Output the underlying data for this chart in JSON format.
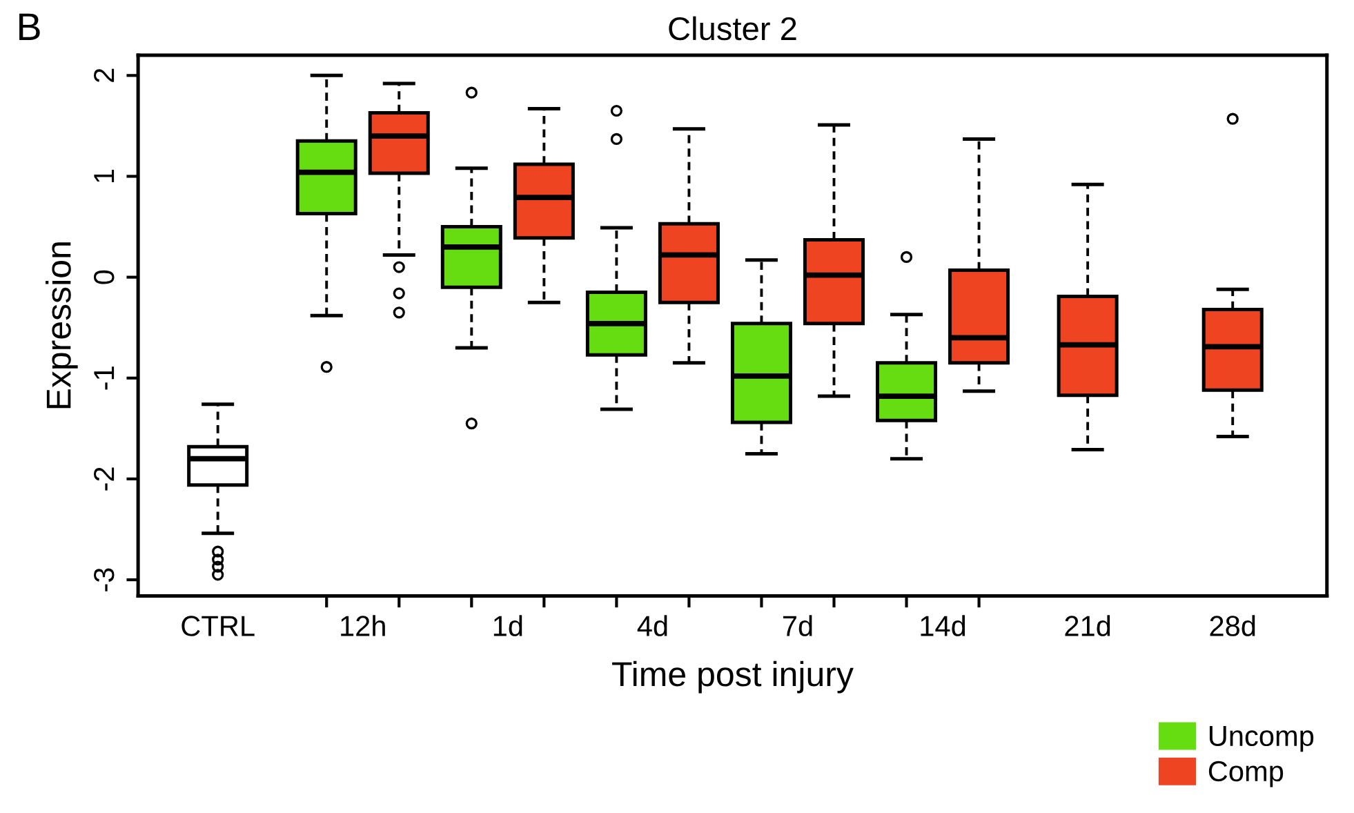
{
  "chart_data": {
    "type": "box",
    "title": "Cluster 2",
    "xlabel": "Time post injury",
    "ylabel": "Expression",
    "annotations": [
      "B"
    ],
    "categories": [
      "CTRL",
      "12h",
      "1d",
      "4d",
      "7d",
      "14d",
      "21d",
      "28d"
    ],
    "ylim": [
      -3.16,
      2.2
    ],
    "yticks": [
      -3,
      -2,
      -1,
      0,
      1,
      2
    ],
    "grid": false,
    "legend": "bottom right",
    "series": [
      {
        "color": "#ffffff",
        "boxes": [
          {
            "low": -2.54,
            "q1": -2.06,
            "median": -1.8,
            "q3": -1.68,
            "high": -1.26,
            "outliers": [
              -2.72,
              -2.8,
              -2.87,
              -2.95
            ]
          },
          null,
          null,
          null,
          null,
          null,
          null,
          null
        ]
      },
      {
        "name": "Uncomp",
        "color": "#66dd11",
        "boxes": [
          null,
          {
            "low": -0.38,
            "q1": 0.63,
            "median": 1.04,
            "q3": 1.35,
            "high": 2.0,
            "outliers": [
              -0.89
            ]
          },
          {
            "low": -0.7,
            "q1": -0.1,
            "median": 0.3,
            "q3": 0.5,
            "high": 1.08,
            "outliers": [
              1.83,
              -1.45
            ]
          },
          {
            "low": -1.31,
            "q1": -0.77,
            "median": -0.46,
            "q3": -0.15,
            "high": 0.49,
            "outliers": [
              1.65,
              1.37
            ]
          },
          {
            "low": -1.75,
            "q1": -1.44,
            "median": -0.98,
            "q3": -0.46,
            "high": 0.17
          },
          {
            "low": -1.8,
            "q1": -1.42,
            "median": -1.18,
            "q3": -0.85,
            "high": -0.37,
            "outliers": [
              0.2
            ]
          },
          null,
          null
        ]
      },
      {
        "name": "Comp",
        "color": "#ee4422",
        "boxes": [
          null,
          {
            "low": 0.22,
            "q1": 1.03,
            "median": 1.4,
            "q3": 1.63,
            "high": 1.92,
            "outliers": [
              0.1,
              -0.16,
              -0.35
            ]
          },
          {
            "low": -0.25,
            "q1": 0.39,
            "median": 0.79,
            "q3": 1.12,
            "high": 1.67
          },
          {
            "low": -0.85,
            "q1": -0.25,
            "median": 0.22,
            "q3": 0.53,
            "high": 1.47
          },
          {
            "low": -1.18,
            "q1": -0.46,
            "median": 0.02,
            "q3": 0.37,
            "high": 1.51
          },
          {
            "low": -1.13,
            "q1": -0.85,
            "median": -0.6,
            "q3": 0.07,
            "high": 1.37
          },
          {
            "low": -1.71,
            "q1": -1.17,
            "median": -0.67,
            "q3": -0.19,
            "high": 0.92
          },
          {
            "low": -1.58,
            "q1": -1.12,
            "median": -0.69,
            "q3": -0.32,
            "high": -0.12,
            "outliers": [
              1.57
            ]
          }
        ]
      }
    ]
  }
}
